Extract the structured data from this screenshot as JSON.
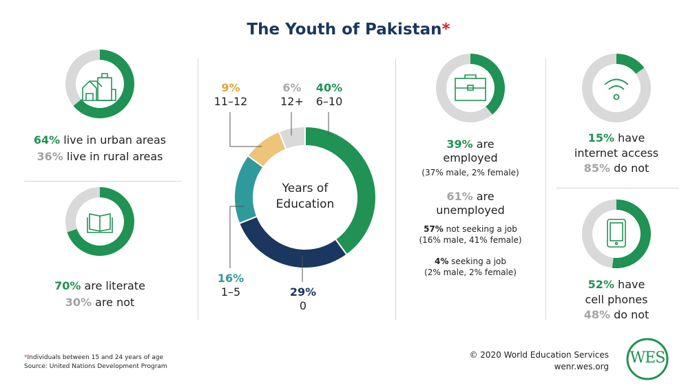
{
  "title": "The Youth of Pakistan",
  "title_mark": "*",
  "colors": {
    "green": "#1f9254",
    "gray": "#d9d9d9",
    "navy": "#1b365f",
    "teal": "#2e9a9c",
    "yellow": "#ecc47a"
  },
  "urban": {
    "icon": "city-buildings-icon",
    "pct1": "64%",
    "text1": " live in urban areas",
    "pct2": "36%",
    "text2": " live in rural areas"
  },
  "literacy": {
    "icon": "open-book-icon",
    "pct1": "70%",
    "text1": " are literate",
    "pct2": "30%",
    "text2": " are not"
  },
  "employment": {
    "icon": "briefcase-icon",
    "pct1": "39%",
    "text1": " are",
    "text1b": "employed",
    "sub1": "(37% male, 2% female)",
    "pct2": "61%",
    "text2": " are",
    "text2b": "unemployed",
    "a_pct": "57%",
    "a_text": " not seeking a job",
    "a_sub": "(16% male, 41% female)",
    "b_pct": "4%",
    "b_text": " seeking a job",
    "b_sub": "(2% male, 2% female)"
  },
  "internet": {
    "icon": "wifi-icon",
    "pct1": "15%",
    "text1": " have",
    "text1b": "internet access",
    "pct2": "85%",
    "text2": " do not"
  },
  "phones": {
    "icon": "cell-phone-icon",
    "pct1": "52%",
    "text1": " have",
    "text1b": "cell phones",
    "pct2": "48%",
    "text2": " do not"
  },
  "chart_data": [
    {
      "type": "pie",
      "title": "",
      "categories": [
        "Urban",
        "Rural"
      ],
      "values": [
        64,
        36
      ]
    },
    {
      "type": "pie",
      "title": "",
      "categories": [
        "Literate",
        "Not literate"
      ],
      "values": [
        70,
        30
      ]
    },
    {
      "type": "pie",
      "title": "Years of Education",
      "categories": [
        "6–10",
        "0",
        "1–5",
        "11–12",
        "12+"
      ],
      "values": [
        40,
        29,
        16,
        9,
        6
      ],
      "labels": [
        "40%",
        "29%",
        "16%",
        "9%",
        "6%"
      ],
      "colors": [
        "#1f9254",
        "#1b365f",
        "#2e9a9c",
        "#ecc47a",
        "#d9d9d9"
      ]
    },
    {
      "type": "pie",
      "title": "",
      "categories": [
        "Employed",
        "Unemployed"
      ],
      "values": [
        39,
        61
      ]
    },
    {
      "type": "pie",
      "title": "",
      "categories": [
        "Internet access",
        "No access"
      ],
      "values": [
        15,
        85
      ]
    },
    {
      "type": "pie",
      "title": "",
      "categories": [
        "Cell phones",
        "No cell phones"
      ],
      "values": [
        52,
        48
      ]
    }
  ],
  "edu_title_1": "Years of",
  "edu_title_2": "Education",
  "footer": {
    "note_mark": "*",
    "note": "Individuals between 15 and 24 years of age",
    "source": "Source: United Nations Development Program",
    "copyright": "© 2020 World Education Services",
    "url": "wenr.wes.org",
    "logo": "WES"
  }
}
